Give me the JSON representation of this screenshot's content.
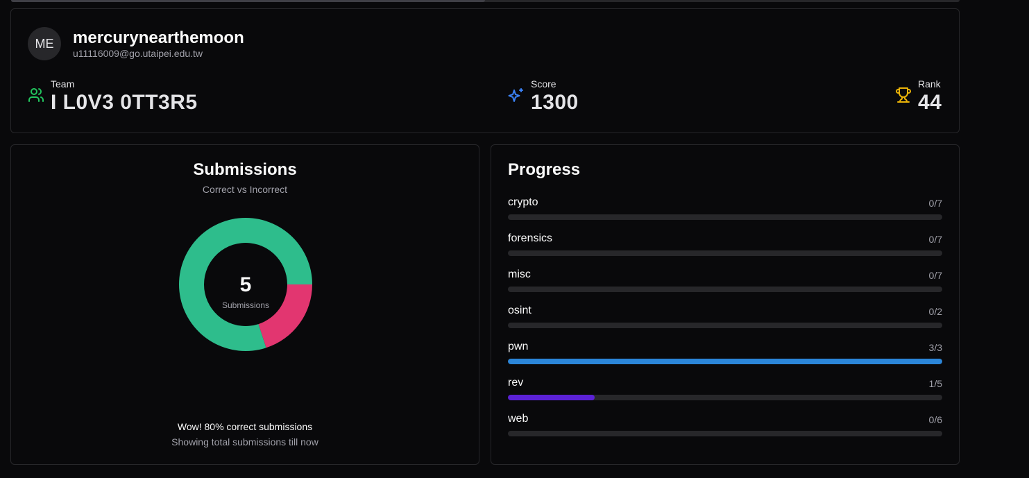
{
  "profile": {
    "avatar_initials": "ME",
    "username": "mercurynearthemoon",
    "email": "u11116009@go.utaipei.edu.tw",
    "team": {
      "label": "Team",
      "value": "I L0V3 0TT3R5",
      "icon": "users-icon",
      "color": "#22c55e"
    },
    "score": {
      "label": "Score",
      "value": "1300",
      "icon": "sparkles-icon",
      "color": "#3b82f6"
    },
    "rank": {
      "label": "Rank",
      "value": "44",
      "icon": "trophy-icon",
      "color": "#eab308"
    }
  },
  "submissions": {
    "title": "Submissions",
    "subtitle": "Correct vs Incorrect",
    "center_value": "5",
    "center_label": "Submissions",
    "footer_main": "Wow! 80% correct submissions",
    "footer_sub": "Showing total submissions till now"
  },
  "chart_data": {
    "type": "pie",
    "categories": [
      "Correct",
      "Incorrect"
    ],
    "values": [
      4,
      1
    ],
    "colors": [
      "#2ebd8c",
      "#e23670"
    ]
  },
  "progress": {
    "title": "Progress",
    "items": [
      {
        "label": "crypto",
        "count": "0/7",
        "solved": 0,
        "total": 7,
        "color": "#2b7fd6"
      },
      {
        "label": "forensics",
        "count": "0/7",
        "solved": 0,
        "total": 7,
        "color": "#2b7fd6"
      },
      {
        "label": "misc",
        "count": "0/7",
        "solved": 0,
        "total": 7,
        "color": "#2b7fd6"
      },
      {
        "label": "osint",
        "count": "0/2",
        "solved": 0,
        "total": 2,
        "color": "#2b7fd6"
      },
      {
        "label": "pwn",
        "count": "3/3",
        "solved": 3,
        "total": 3,
        "color": "#2b86d9"
      },
      {
        "label": "rev",
        "count": "1/5",
        "solved": 1,
        "total": 5,
        "color": "#5b21d6"
      },
      {
        "label": "web",
        "count": "0/6",
        "solved": 0,
        "total": 6,
        "color": "#2b7fd6"
      }
    ]
  }
}
